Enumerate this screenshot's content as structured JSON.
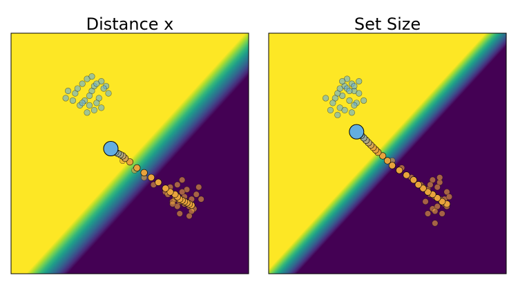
{
  "chart_data": [
    {
      "type": "contour-scatter",
      "title": "Distance x",
      "xlabel": "",
      "ylabel": "",
      "xlim": [
        0,
        1
      ],
      "ylim": [
        0,
        1
      ],
      "axes_ticks": "hidden",
      "grid": false,
      "legend": "none",
      "decision_surface": {
        "colormap": "viridis",
        "high_color": "#fde725",
        "low_color": "#440154",
        "boundary_line": {
          "x1": 0.15,
          "y1": 0.0,
          "x2": 1.0,
          "y2": 0.92
        },
        "boundary_width": 0.13
      },
      "series": [
        {
          "color": "#e8a33d",
          "edge_color": "#000000",
          "x": [
            0.42,
            0.47,
            0.52,
            0.56,
            0.6,
            0.65,
            0.69,
            0.71,
            0.73,
            0.75,
            0.77,
            0.76,
            0.7,
            0.72,
            0.74,
            0.78,
            0.66,
            0.68,
            0.8,
            0.71,
            0.75,
            0.67,
            0.73,
            0.7,
            0.79,
            0.72,
            0.68,
            0.76
          ],
          "y": [
            0.51,
            0.47,
            0.43,
            0.4,
            0.37,
            0.34,
            0.31,
            0.3,
            0.29,
            0.28,
            0.27,
            0.26,
            0.37,
            0.39,
            0.35,
            0.33,
            0.33,
            0.3,
            0.31,
            0.25,
            0.24,
            0.36,
            0.32,
            0.28,
            0.36,
            0.34,
            0.29,
            0.31
          ]
        },
        {
          "color": "#63aee0",
          "edge_color": "#000000",
          "x": [
            0.38,
            0.32,
            0.3,
            0.34,
            0.35,
            0.27,
            0.28,
            0.37,
            0.4,
            0.33,
            0.31,
            0.36,
            0.38,
            0.29,
            0.35,
            0.32,
            0.3,
            0.39,
            0.41,
            0.26,
            0.34,
            0.36,
            0.33,
            0.24,
            0.23
          ],
          "y": [
            0.8,
            0.81,
            0.79,
            0.76,
            0.78,
            0.75,
            0.77,
            0.73,
            0.78,
            0.74,
            0.72,
            0.71,
            0.69,
            0.7,
            0.68,
            0.67,
            0.71,
            0.77,
            0.75,
            0.72,
            0.82,
            0.79,
            0.7,
            0.76,
            0.73
          ]
        }
      ],
      "trajectory": {
        "color_start": "#e8a33d",
        "color_end": "#63aee0",
        "x": [
          0.42,
          0.43,
          0.44,
          0.45,
          0.46,
          0.47,
          0.48,
          0.5,
          0.53,
          0.56,
          0.59,
          0.62,
          0.65,
          0.67,
          0.69,
          0.7,
          0.71,
          0.72,
          0.73,
          0.74,
          0.75,
          0.76
        ],
        "y": [
          0.52,
          0.51,
          0.505,
          0.5,
          0.495,
          0.49,
          0.48,
          0.465,
          0.44,
          0.42,
          0.4,
          0.38,
          0.355,
          0.34,
          0.33,
          0.32,
          0.31,
          0.305,
          0.3,
          0.295,
          0.29,
          0.285
        ]
      }
    },
    {
      "type": "contour-scatter",
      "title": "Set Size",
      "xlabel": "",
      "ylabel": "",
      "xlim": [
        0,
        1
      ],
      "ylim": [
        0,
        1
      ],
      "axes_ticks": "hidden",
      "grid": false,
      "legend": "none",
      "decision_surface": {
        "colormap": "viridis",
        "high_color": "#fde725",
        "low_color": "#440154",
        "boundary_line": {
          "x1": 0.05,
          "y1": 0.0,
          "x2": 1.0,
          "y2": 1.02
        },
        "boundary_width": 0.1
      },
      "series": [
        {
          "color": "#e8a33d",
          "edge_color": "#000000",
          "x": [
            0.52,
            0.56,
            0.6,
            0.64,
            0.67,
            0.7,
            0.72,
            0.73,
            0.74,
            0.75,
            0.72,
            0.69,
            0.71,
            0.68,
            0.75,
            0.66,
            0.69,
            0.73,
            0.67,
            0.72,
            0.7,
            0.74,
            0.68,
            0.71,
            0.65,
            0.76,
            0.7
          ],
          "y": [
            0.47,
            0.44,
            0.4,
            0.37,
            0.35,
            0.32,
            0.31,
            0.3,
            0.29,
            0.28,
            0.38,
            0.39,
            0.36,
            0.33,
            0.34,
            0.3,
            0.27,
            0.25,
            0.25,
            0.4,
            0.21,
            0.31,
            0.37,
            0.28,
            0.36,
            0.32,
            0.26
          ]
        },
        {
          "color": "#63aee0",
          "edge_color": "#000000",
          "x": [
            0.38,
            0.35,
            0.32,
            0.36,
            0.33,
            0.31,
            0.29,
            0.34,
            0.37,
            0.3,
            0.32,
            0.36,
            0.28,
            0.35,
            0.38,
            0.33,
            0.31,
            0.3,
            0.27,
            0.26,
            0.4,
            0.34,
            0.36,
            0.29,
            0.24
          ],
          "y": [
            0.8,
            0.79,
            0.78,
            0.76,
            0.77,
            0.74,
            0.75,
            0.72,
            0.71,
            0.69,
            0.68,
            0.7,
            0.73,
            0.67,
            0.75,
            0.81,
            0.8,
            0.77,
            0.71,
            0.68,
            0.72,
            0.76,
            0.78,
            0.66,
            0.73
          ]
        }
      ],
      "trajectory": {
        "color_start": "#e8a33d",
        "color_end": "#63aee0",
        "x": [
          0.37,
          0.38,
          0.39,
          0.4,
          0.41,
          0.42,
          0.43,
          0.44,
          0.45,
          0.46,
          0.48,
          0.5,
          0.52,
          0.55,
          0.58,
          0.61,
          0.63,
          0.65,
          0.67,
          0.69,
          0.71,
          0.73,
          0.75
        ],
        "y": [
          0.59,
          0.585,
          0.575,
          0.565,
          0.555,
          0.545,
          0.535,
          0.525,
          0.515,
          0.505,
          0.49,
          0.47,
          0.45,
          0.43,
          0.41,
          0.39,
          0.37,
          0.355,
          0.34,
          0.33,
          0.315,
          0.3,
          0.29
        ]
      }
    }
  ]
}
